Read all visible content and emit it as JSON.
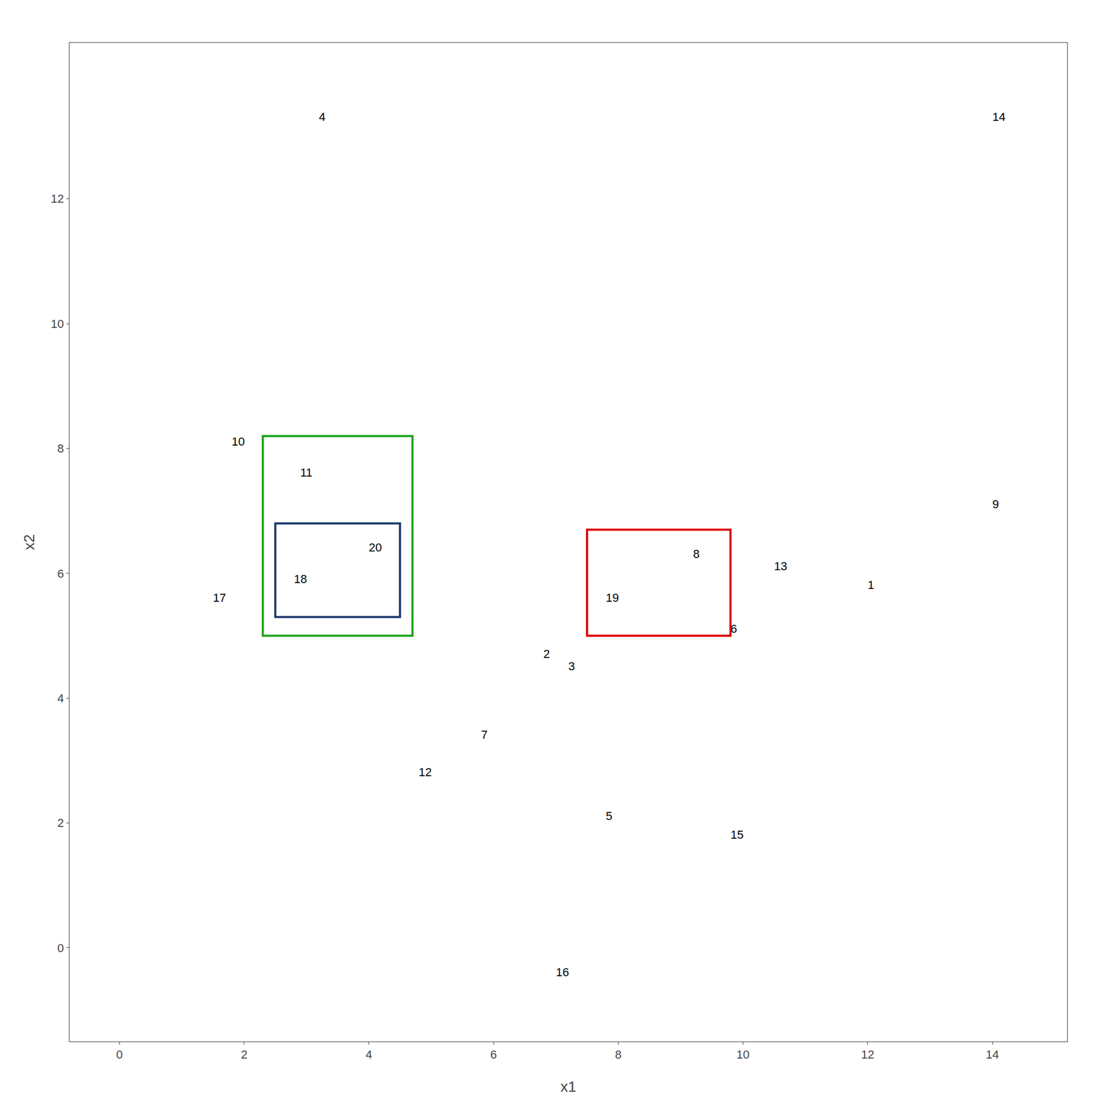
{
  "chart_data": {
    "type": "scatter",
    "marker": "none",
    "x": [
      12.0,
      6.8,
      7.2,
      3.2,
      7.8,
      9.8,
      5.8,
      9.2,
      14.0,
      1.8,
      2.9,
      4.8,
      10.5,
      14.0,
      9.8,
      7.0,
      1.5,
      2.8,
      7.8,
      4.0
    ],
    "y": [
      5.7,
      4.6,
      4.4,
      13.2,
      2.0,
      5.0,
      3.3,
      6.2,
      7.0,
      8.0,
      7.5,
      2.7,
      6.0,
      13.2,
      1.7,
      -0.5,
      5.5,
      5.8,
      5.5,
      6.3
    ],
    "labels": [
      "1",
      "2",
      "3",
      "4",
      "5",
      "6",
      "7",
      "8",
      "9",
      "10",
      "11",
      "12",
      "13",
      "14",
      "15",
      "16",
      "17",
      "18",
      "19",
      "20"
    ],
    "boxes": [
      {
        "x": 2.5,
        "y": 5.3,
        "width": 2.0,
        "height": 1.5,
        "color": "#1c3a6e"
      },
      {
        "x": 2.3,
        "y": 5.0,
        "width": 2.4,
        "height": 3.2,
        "color": "#1aa31a"
      },
      {
        "x": 7.5,
        "y": 5.0,
        "width": 2.3,
        "height": 1.7,
        "color": "#dd0000"
      }
    ],
    "xlim": [
      -0.8,
      15.2
    ],
    "ylim": [
      -1.5,
      14.5
    ],
    "xticks": [
      0,
      2,
      4,
      6,
      8,
      10,
      12,
      14
    ],
    "yticks": [
      0,
      2,
      4,
      6,
      8,
      10,
      12
    ],
    "xlabel": "x1",
    "ylabel": "x2",
    "grid": false
  }
}
